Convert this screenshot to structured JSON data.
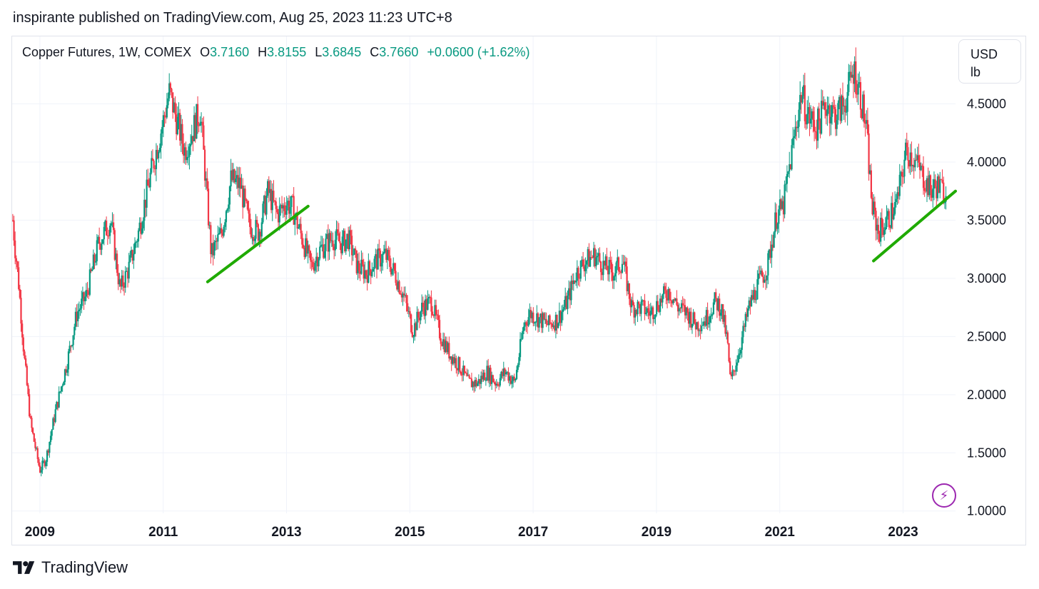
{
  "publish_line": "inspirante published on TradingView.com, Aug 25, 2023 11:23 UTC+8",
  "legend": {
    "symbol": "Copper Futures, 1W, COMEX",
    "open_key": "O",
    "open": "3.7160",
    "high_key": "H",
    "high": "3.8155",
    "low_key": "L",
    "low": "3.6845",
    "close_key": "C",
    "close": "3.7660",
    "change": "+0.0600 (+1.62%)"
  },
  "unit": {
    "line1": "USD",
    "line2": "lb"
  },
  "brand": {
    "name": "TradingView",
    "logo_icon": "tradingview-logo-icon"
  },
  "colors": {
    "up": "#089981",
    "down": "#f23645",
    "trendline": "#1faa00",
    "grid": "#f0f3fa",
    "text": "#131722",
    "accent": "#9c27b0"
  },
  "chart_data": {
    "type": "candlestick",
    "title": "Copper Futures, 1W, COMEX",
    "interval": "1W",
    "currency": "USD",
    "unit": "lb",
    "xlim": [
      2008.55,
      2023.85
    ],
    "ylim": [
      0.98,
      5.08
    ],
    "y_ticks": [
      "1.0000",
      "1.5000",
      "2.0000",
      "2.5000",
      "3.0000",
      "3.5000",
      "4.0000",
      "4.5000"
    ],
    "x_ticks": [
      "2009",
      "2011",
      "2013",
      "2015",
      "2017",
      "2019",
      "2021",
      "2023"
    ],
    "grid": true,
    "price_path": [
      [
        2008.56,
        3.5
      ],
      [
        2008.6,
        3.25
      ],
      [
        2008.65,
        3.0
      ],
      [
        2008.75,
        2.3
      ],
      [
        2008.85,
        1.75
      ],
      [
        2009.0,
        1.35
      ],
      [
        2009.1,
        1.45
      ],
      [
        2009.25,
        1.85
      ],
      [
        2009.45,
        2.3
      ],
      [
        2009.6,
        2.7
      ],
      [
        2009.75,
        2.85
      ],
      [
        2009.95,
        3.3
      ],
      [
        2010.15,
        3.5
      ],
      [
        2010.3,
        2.9
      ],
      [
        2010.45,
        3.1
      ],
      [
        2010.6,
        3.4
      ],
      [
        2010.8,
        3.9
      ],
      [
        2011.0,
        4.35
      ],
      [
        2011.1,
        4.6
      ],
      [
        2011.2,
        4.4
      ],
      [
        2011.35,
        4.1
      ],
      [
        2011.5,
        4.3
      ],
      [
        2011.6,
        4.45
      ],
      [
        2011.68,
        3.9
      ],
      [
        2011.78,
        3.2
      ],
      [
        2011.95,
        3.4
      ],
      [
        2012.1,
        3.85
      ],
      [
        2012.25,
        3.8
      ],
      [
        2012.4,
        3.45
      ],
      [
        2012.55,
        3.4
      ],
      [
        2012.7,
        3.75
      ],
      [
        2012.85,
        3.55
      ],
      [
        2013.0,
        3.65
      ],
      [
        2013.1,
        3.6
      ],
      [
        2013.25,
        3.35
      ],
      [
        2013.4,
        3.1
      ],
      [
        2013.55,
        3.25
      ],
      [
        2013.75,
        3.35
      ],
      [
        2013.9,
        3.3
      ],
      [
        2014.0,
        3.35
      ],
      [
        2014.15,
        3.1
      ],
      [
        2014.3,
        3.05
      ],
      [
        2014.45,
        3.15
      ],
      [
        2014.6,
        3.2
      ],
      [
        2014.75,
        3.05
      ],
      [
        2014.9,
        2.85
      ],
      [
        2015.05,
        2.55
      ],
      [
        2015.2,
        2.75
      ],
      [
        2015.35,
        2.8
      ],
      [
        2015.5,
        2.5
      ],
      [
        2015.65,
        2.35
      ],
      [
        2015.8,
        2.25
      ],
      [
        2015.95,
        2.1
      ],
      [
        2016.1,
        2.1
      ],
      [
        2016.25,
        2.2
      ],
      [
        2016.4,
        2.1
      ],
      [
        2016.55,
        2.2
      ],
      [
        2016.7,
        2.1
      ],
      [
        2016.85,
        2.6
      ],
      [
        2016.95,
        2.7
      ],
      [
        2017.1,
        2.65
      ],
      [
        2017.25,
        2.6
      ],
      [
        2017.4,
        2.65
      ],
      [
        2017.55,
        2.8
      ],
      [
        2017.7,
        3.05
      ],
      [
        2017.85,
        3.15
      ],
      [
        2018.0,
        3.2
      ],
      [
        2018.15,
        3.1
      ],
      [
        2018.3,
        3.05
      ],
      [
        2018.45,
        3.15
      ],
      [
        2018.6,
        2.75
      ],
      [
        2018.75,
        2.75
      ],
      [
        2018.9,
        2.7
      ],
      [
        2019.05,
        2.8
      ],
      [
        2019.2,
        2.9
      ],
      [
        2019.35,
        2.75
      ],
      [
        2019.5,
        2.7
      ],
      [
        2019.65,
        2.6
      ],
      [
        2019.8,
        2.65
      ],
      [
        2019.95,
        2.8
      ],
      [
        2020.05,
        2.75
      ],
      [
        2020.15,
        2.45
      ],
      [
        2020.2,
        2.1
      ],
      [
        2020.35,
        2.4
      ],
      [
        2020.5,
        2.75
      ],
      [
        2020.65,
        2.95
      ],
      [
        2020.8,
        3.1
      ],
      [
        2020.95,
        3.55
      ],
      [
        2021.05,
        3.6
      ],
      [
        2021.2,
        4.1
      ],
      [
        2021.35,
        4.6
      ],
      [
        2021.45,
        4.4
      ],
      [
        2021.6,
        4.3
      ],
      [
        2021.75,
        4.5
      ],
      [
        2021.9,
        4.4
      ],
      [
        2022.05,
        4.5
      ],
      [
        2022.2,
        4.8
      ],
      [
        2022.3,
        4.6
      ],
      [
        2022.4,
        4.3
      ],
      [
        2022.5,
        3.6
      ],
      [
        2022.6,
        3.4
      ],
      [
        2022.75,
        3.5
      ],
      [
        2022.9,
        3.65
      ],
      [
        2023.05,
        4.1
      ],
      [
        2023.15,
        4.05
      ],
      [
        2023.3,
        3.9
      ],
      [
        2023.45,
        3.75
      ],
      [
        2023.55,
        3.8
      ],
      [
        2023.65,
        3.75
      ],
      [
        2023.7,
        3.766
      ]
    ],
    "trendlines": [
      {
        "from": [
          2011.72,
          2.97
        ],
        "to": [
          2013.35,
          3.62
        ]
      },
      {
        "from": [
          2022.52,
          3.15
        ],
        "to": [
          2023.85,
          3.75
        ]
      }
    ],
    "last_close": 3.766
  }
}
